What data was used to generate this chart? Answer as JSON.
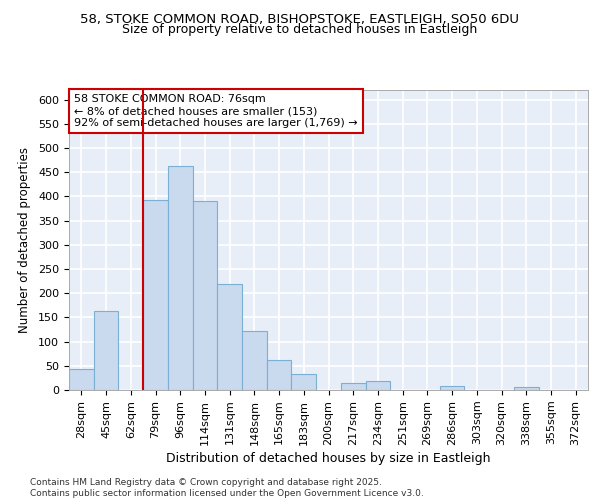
{
  "title_line1": "58, STOKE COMMON ROAD, BISHOPSTOKE, EASTLEIGH, SO50 6DU",
  "title_line2": "Size of property relative to detached houses in Eastleigh",
  "xlabel": "Distribution of detached houses by size in Eastleigh",
  "ylabel": "Number of detached properties",
  "categories": [
    "28sqm",
    "45sqm",
    "62sqm",
    "79sqm",
    "96sqm",
    "114sqm",
    "131sqm",
    "148sqm",
    "165sqm",
    "183sqm",
    "200sqm",
    "217sqm",
    "234sqm",
    "251sqm",
    "269sqm",
    "286sqm",
    "303sqm",
    "320sqm",
    "338sqm",
    "355sqm",
    "372sqm"
  ],
  "values": [
    44,
    163,
    0,
    393,
    463,
    390,
    220,
    122,
    63,
    33,
    0,
    15,
    18,
    0,
    0,
    8,
    0,
    0,
    6,
    0,
    0
  ],
  "bar_color": "#c9d9ee",
  "bar_edge_color": "#7bafd4",
  "vline_pos": 3,
  "vline_color": "#cc0000",
  "annotation_text": "58 STOKE COMMON ROAD: 76sqm\n← 8% of detached houses are smaller (153)\n92% of semi-detached houses are larger (1,769) →",
  "annotation_box_facecolor": "#ffffff",
  "annotation_box_edgecolor": "#cc0000",
  "ylim": [
    0,
    620
  ],
  "yticks": [
    0,
    50,
    100,
    150,
    200,
    250,
    300,
    350,
    400,
    450,
    500,
    550,
    600
  ],
  "plot_bg_color": "#e8eef8",
  "fig_bg_color": "#ffffff",
  "grid_color": "#ffffff",
  "footer": "Contains HM Land Registry data © Crown copyright and database right 2025.\nContains public sector information licensed under the Open Government Licence v3.0.",
  "title_fontsize": 9.5,
  "subtitle_fontsize": 9,
  "ylabel_fontsize": 8.5,
  "xlabel_fontsize": 9,
  "tick_fontsize": 8,
  "annot_fontsize": 8,
  "footer_fontsize": 6.5
}
